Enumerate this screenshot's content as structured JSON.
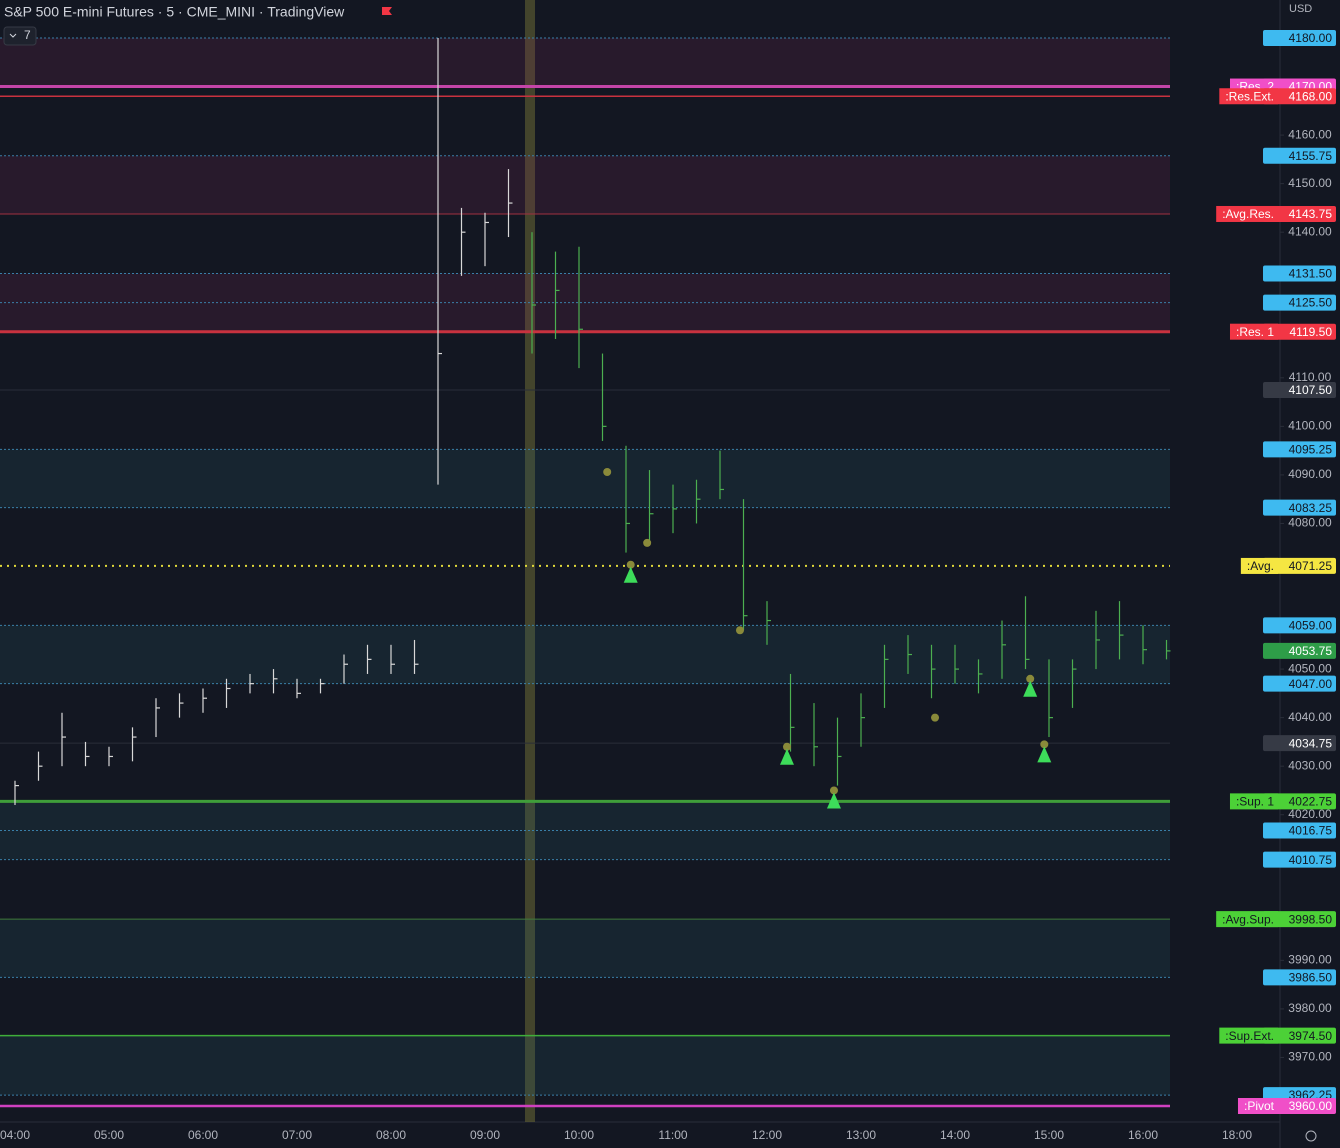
{
  "chart_data": {
    "type": "ohlc",
    "title": "S&P 500 E-mini Futures · 5 · CME_MINI · TradingView",
    "currency": "USD",
    "indicator_count": "7",
    "x": [
      "04:00",
      null,
      null,
      null,
      "05:00",
      null,
      null,
      null,
      "06:00",
      null,
      null,
      null,
      "07:00",
      null,
      null,
      null,
      "08:00",
      null,
      null,
      null,
      "09:00",
      null,
      null,
      null,
      "10:00",
      null,
      null,
      null,
      "11:00",
      null,
      null,
      null,
      "12:00",
      null,
      null,
      null,
      "13:00",
      null,
      null,
      null,
      "14:00",
      null,
      null,
      null,
      "15:00",
      null,
      null,
      null,
      "16:00",
      null,
      null,
      null,
      "18:00"
    ],
    "ylim": [
      3960,
      4180
    ],
    "yticks": [
      {
        "value": 4160,
        "label": "4160.00"
      },
      {
        "value": 4150,
        "label": "4150.00"
      },
      {
        "value": 4140,
        "label": "4140.00"
      },
      {
        "value": 4110,
        "label": "4110.00"
      },
      {
        "value": 4100,
        "label": "4100.00"
      },
      {
        "value": 4090,
        "label": "4090.00"
      },
      {
        "value": 4080,
        "label": "4080.00"
      },
      {
        "value": 4050,
        "label": "4050.00"
      },
      {
        "value": 4040,
        "label": "4040.00"
      },
      {
        "value": 4030,
        "label": "4030.00"
      },
      {
        "value": 4020,
        "label": "4020.00"
      },
      {
        "value": 3990,
        "label": "3990.00"
      },
      {
        "value": 3980,
        "label": "3980.00"
      },
      {
        "value": 3970,
        "label": "3970.00"
      }
    ],
    "series": [
      {
        "color": "#d8d8d8",
        "high": [
          4027,
          4033,
          4041,
          4035,
          4034,
          4038,
          4044,
          4045,
          4046,
          4048,
          4049,
          4050,
          4048,
          4048,
          4053,
          4055,
          4055,
          4056,
          4180,
          4145,
          4144,
          4153,
          null,
          null,
          null,
          null,
          null,
          null,
          null,
          null,
          null,
          null,
          null,
          null,
          null,
          null,
          null,
          null,
          null,
          null,
          null,
          null,
          null,
          null,
          null,
          null,
          null,
          null,
          null,
          null,
          null,
          null,
          null
        ],
        "low": [
          4022,
          4027,
          4030,
          4030,
          4030,
          4031,
          4036,
          4040,
          4041,
          4042,
          4045,
          4045,
          4044,
          4045,
          4047,
          4049,
          4049,
          4049,
          4088,
          4131,
          4133,
          4139,
          null,
          null,
          null,
          null,
          null,
          null,
          null,
          null,
          null,
          null,
          null,
          null,
          null,
          null,
          null,
          null,
          null,
          null,
          null,
          null,
          null,
          null,
          null,
          null,
          null,
          null,
          null,
          null,
          null,
          null,
          null
        ],
        "close": [
          4026,
          4030,
          4036,
          4032,
          4032,
          4036,
          4042,
          4043,
          4044,
          4046,
          4047,
          4048,
          4045,
          4047,
          4051,
          4052,
          4051,
          4051,
          4115,
          4140,
          4142,
          4146,
          null,
          null,
          null,
          null,
          null,
          null,
          null,
          null,
          null,
          null,
          null,
          null,
          null,
          null,
          null,
          null,
          null,
          null,
          null,
          null,
          null,
          null,
          null,
          null,
          null,
          null,
          null,
          null,
          null,
          null,
          null
        ]
      },
      {
        "color": "#4caf50",
        "high": [
          null,
          null,
          null,
          null,
          null,
          null,
          null,
          null,
          null,
          null,
          null,
          null,
          null,
          null,
          null,
          null,
          null,
          null,
          null,
          null,
          null,
          null,
          4140,
          4136,
          4137,
          4115,
          4096,
          4091,
          4088,
          4089,
          4095,
          4085,
          4064,
          4049,
          4043,
          4040,
          4045,
          4055,
          4057,
          4055,
          4055,
          4052,
          4060,
          4065,
          4052,
          4052,
          4062,
          4064,
          4059,
          4056,
          null,
          null,
          null
        ],
        "low": [
          null,
          null,
          null,
          null,
          null,
          null,
          null,
          null,
          null,
          null,
          null,
          null,
          null,
          null,
          null,
          null,
          null,
          null,
          null,
          null,
          null,
          null,
          4115,
          4118,
          4112,
          4097,
          4074,
          4076,
          4078,
          4080,
          4085,
          4058,
          4055,
          4033,
          4030,
          4026,
          4034,
          4042,
          4049,
          4044,
          4047,
          4045,
          4048,
          4050,
          4036,
          4042,
          4050,
          4052,
          4051,
          4052,
          null,
          null,
          null
        ],
        "close": [
          null,
          null,
          null,
          null,
          null,
          null,
          null,
          null,
          null,
          null,
          null,
          null,
          null,
          null,
          null,
          null,
          null,
          null,
          null,
          null,
          null,
          null,
          4125,
          4128,
          4120,
          4100,
          4080,
          4082,
          4083,
          4085,
          4087,
          4061,
          4060,
          4038,
          4034,
          4032,
          4040,
          4052,
          4053,
          4050,
          4050,
          4049,
          4055,
          4052,
          4040,
          4050,
          4056,
          4057,
          4054,
          4053.75,
          null,
          null,
          null
        ]
      }
    ],
    "zones": [
      {
        "from": 4180,
        "to": 4170,
        "color": "rgba(120,40,80,0.22)"
      },
      {
        "from": 4155.75,
        "to": 4143.75,
        "color": "rgba(120,40,80,0.22)"
      },
      {
        "from": 4131.5,
        "to": 4119.5,
        "color": "rgba(120,40,80,0.22)"
      },
      {
        "from": 4095.25,
        "to": 4083.25,
        "color": "rgba(40,90,100,0.22)"
      },
      {
        "from": 4059,
        "to": 4047,
        "color": "rgba(40,90,100,0.22)"
      },
      {
        "from": 4022.75,
        "to": 4010.75,
        "color": "rgba(40,90,100,0.22)"
      },
      {
        "from": 3998.5,
        "to": 3986.5,
        "color": "rgba(40,90,100,0.22)"
      },
      {
        "from": 3974.5,
        "to": 3962.25,
        "color": "rgba(40,90,100,0.22)"
      }
    ],
    "levels": [
      {
        "value": 4180,
        "label": "4180.00",
        "color": "#3ebaf0",
        "text_color": "#131722",
        "line": "#3a7fa8",
        "width": 1,
        "dashed": true
      },
      {
        "value": 4170,
        "label": "4170.00",
        "name": ":Res. 2",
        "color": "#f04fc8",
        "text_color": "#ffffff",
        "line": "#c445a8",
        "width": 3
      },
      {
        "value": 4168,
        "label": "4168.00",
        "name": ":Res.Ext.",
        "color": "#f23645",
        "text_color": "#ffffff",
        "line": "#c8323f",
        "width": 1.5
      },
      {
        "value": 4155.75,
        "label": "4155.75",
        "color": "#3ebaf0",
        "text_color": "#131722",
        "line": "#3a7fa8",
        "width": 1,
        "dashed": true
      },
      {
        "value": 4143.75,
        "label": "4143.75",
        "name": ":Avg.Res.",
        "color": "#f23645",
        "text_color": "#ffffff",
        "line": "#a03040",
        "width": 1
      },
      {
        "value": 4131.5,
        "label": "4131.50",
        "color": "#3ebaf0",
        "text_color": "#131722",
        "line": "#3a7fa8",
        "width": 1,
        "dashed": true
      },
      {
        "value": 4125.5,
        "label": "4125.50",
        "color": "#3ebaf0",
        "text_color": "#131722",
        "line": "#3a7fa8",
        "width": 1,
        "dashed": true
      },
      {
        "value": 4119.5,
        "label": "4119.50",
        "name": ":Res. 1",
        "color": "#f23645",
        "text_color": "#ffffff",
        "line": "#c8323f",
        "width": 3
      },
      {
        "value": 4107.5,
        "label": "4107.50",
        "color": "#363a45",
        "text_color": "#ffffff",
        "line": "#2a2e39",
        "width": 1
      },
      {
        "value": 4095.25,
        "label": "4095.25",
        "color": "#3ebaf0",
        "text_color": "#131722",
        "line": "#3a7fa8",
        "width": 1,
        "dashed": true
      },
      {
        "value": 4083.25,
        "label": "4083.25",
        "color": "#3ebaf0",
        "text_color": "#131722",
        "line": "#3a7fa8",
        "width": 1,
        "dashed": true
      },
      {
        "value": 4071.25,
        "label": "4071.25",
        "name": ":Avg.",
        "color": "#f5e642",
        "text_color": "#131722",
        "line": "#e0d83a",
        "width": 2,
        "dotted": true
      },
      {
        "value": 4059,
        "label": "4059.00",
        "color": "#3ebaf0",
        "text_color": "#131722",
        "line": "#3a7fa8",
        "width": 1,
        "dashed": true
      },
      {
        "value": 4053.75,
        "label": "4053.75",
        "color": "#2e9d48",
        "text_color": "#ffffff"
      },
      {
        "value": 4047,
        "label": "4047.00",
        "color": "#3ebaf0",
        "text_color": "#131722",
        "line": "#3a7fa8",
        "width": 1,
        "dashed": true
      },
      {
        "value": 4034.75,
        "label": "4034.75",
        "color": "#363a45",
        "text_color": "#ffffff",
        "line": "#2a2e39",
        "width": 1
      },
      {
        "value": 4022.75,
        "label": "4022.75",
        "name": ":Sup. 1",
        "color": "#4cd137",
        "text_color": "#131722",
        "line": "#3f9e3a",
        "width": 3
      },
      {
        "value": 4016.75,
        "label": "4016.75",
        "color": "#3ebaf0",
        "text_color": "#131722",
        "line": "#3a7fa8",
        "width": 1,
        "dashed": true
      },
      {
        "value": 4010.75,
        "label": "4010.75",
        "color": "#3ebaf0",
        "text_color": "#131722",
        "line": "#3a7fa8",
        "width": 1,
        "dashed": true
      },
      {
        "value": 3998.5,
        "label": "3998.50",
        "name": ":Avg.Sup.",
        "color": "#4cd137",
        "text_color": "#131722",
        "line": "#3f7a3a",
        "width": 1
      },
      {
        "value": 3986.5,
        "label": "3986.50",
        "color": "#3ebaf0",
        "text_color": "#131722",
        "line": "#3a7fa8",
        "width": 1,
        "dashed": true
      },
      {
        "value": 3974.5,
        "label": "3974.50",
        "name": ":Sup.Ext.",
        "color": "#4cd137",
        "text_color": "#131722",
        "line": "#3fae3a",
        "width": 1.5
      },
      {
        "value": 3962.25,
        "label": "3962.25",
        "color": "#3ebaf0",
        "text_color": "#131722",
        "line": "#3a7fa8",
        "width": 1,
        "dashed": true
      },
      {
        "value": 3960,
        "label": "3960.00",
        "name": ":Pivot",
        "color": "#f04fc8",
        "text_color": "#ffffff",
        "line": "#d040c0",
        "width": 2.5
      }
    ],
    "dots": {
      "color": "#8a8a3a",
      "x": [
        25.2,
        26.2,
        26.9,
        30.85,
        32.85,
        34.85,
        39.15,
        43.2,
        43.8
      ],
      "y": [
        4090.6,
        4071.5,
        4076,
        4058,
        4034,
        4025,
        4040,
        4048,
        4034.5
      ]
    },
    "triangles": {
      "color": "#3ddc5a",
      "x": [
        26.2,
        32.85,
        34.85,
        43.2,
        43.8
      ],
      "y": [
        4071.5,
        4034,
        4025,
        4048,
        4034.5
      ]
    }
  }
}
